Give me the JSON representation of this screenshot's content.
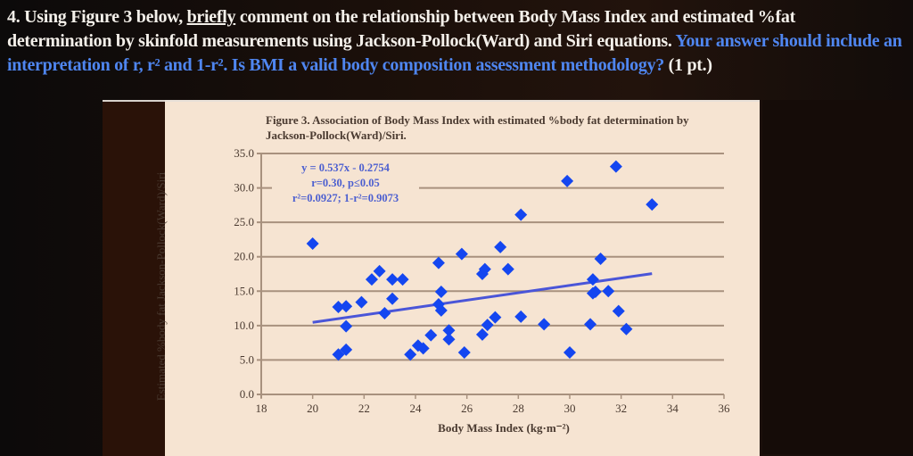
{
  "question": {
    "prefix": "4. Using Figure 3 below, ",
    "emphasis": "briefly",
    "line1_rest": " comment on the relationship between Body Mass Index and estimated %fat",
    "line2": "determination by skinfold measurements using Jackson-Pollock(Ward) and Siri equations. ",
    "blue_text": "Your answer should include an interpretation of r, r² and 1-r².  Is BMI a valid body composition assessment methodology?",
    "points": " (1 pt.)"
  },
  "colors": {
    "marker": "#1446f0",
    "trendline": "#4a55d8",
    "grid": "#a8917e",
    "panel": "#f6e4d2"
  },
  "chart_data": {
    "type": "scatter",
    "title": "Figure 3. Association of Body Mass Index with estimated %body fat determination by Jackson-Pollock(Ward)/Siri.",
    "xlabel": "Body Mass Index (kg·m⁻²)",
    "ylabel": "Estimated %body fat Jackson-Pollock(Ward)/Siri",
    "xlim": [
      18,
      36
    ],
    "ylim": [
      0,
      35
    ],
    "xticks": [
      "18",
      "20",
      "22",
      "24",
      "26",
      "28",
      "30",
      "32",
      "34",
      "36"
    ],
    "yticks": [
      "0.0",
      "5.0",
      "10.0",
      "15.0",
      "20.0",
      "25.0",
      "30.0",
      "35.0"
    ],
    "grid": true,
    "annotation": [
      "y = 0.537x - 0.2754",
      "r=0.30, p≤0.05",
      "r²=0.0927; 1-r²=0.9073"
    ],
    "trendline": {
      "slope": 0.537,
      "intercept": -0.2754,
      "x_range": [
        20,
        33.2
      ]
    },
    "points": [
      [
        20.0,
        21.9
      ],
      [
        21.0,
        12.7
      ],
      [
        21.3,
        12.8
      ],
      [
        21.3,
        9.9
      ],
      [
        21.0,
        5.8
      ],
      [
        21.3,
        6.5
      ],
      [
        21.9,
        13.4
      ],
      [
        22.3,
        16.7
      ],
      [
        22.6,
        17.9
      ],
      [
        23.1,
        16.7
      ],
      [
        23.5,
        16.7
      ],
      [
        23.1,
        13.9
      ],
      [
        22.8,
        11.8
      ],
      [
        23.8,
        5.8
      ],
      [
        24.1,
        7.1
      ],
      [
        24.3,
        6.7
      ],
      [
        24.6,
        8.6
      ],
      [
        24.9,
        19.1
      ],
      [
        25.0,
        14.9
      ],
      [
        24.9,
        13.1
      ],
      [
        25.0,
        12.2
      ],
      [
        25.3,
        9.3
      ],
      [
        25.3,
        8.0
      ],
      [
        25.9,
        6.1
      ],
      [
        25.8,
        20.4
      ],
      [
        26.6,
        17.5
      ],
      [
        26.7,
        18.2
      ],
      [
        27.3,
        21.4
      ],
      [
        27.6,
        18.2
      ],
      [
        28.1,
        26.1
      ],
      [
        26.6,
        8.7
      ],
      [
        26.8,
        10.1
      ],
      [
        27.1,
        11.2
      ],
      [
        28.1,
        11.3
      ],
      [
        29.0,
        10.2
      ],
      [
        29.9,
        31.0
      ],
      [
        30.0,
        6.1
      ],
      [
        30.8,
        10.2
      ],
      [
        30.9,
        16.7
      ],
      [
        30.9,
        14.7
      ],
      [
        31.0,
        14.9
      ],
      [
        31.2,
        19.7
      ],
      [
        31.5,
        15.0
      ],
      [
        31.8,
        33.1
      ],
      [
        31.9,
        12.1
      ],
      [
        32.2,
        9.5
      ],
      [
        33.2,
        27.6
      ]
    ]
  }
}
